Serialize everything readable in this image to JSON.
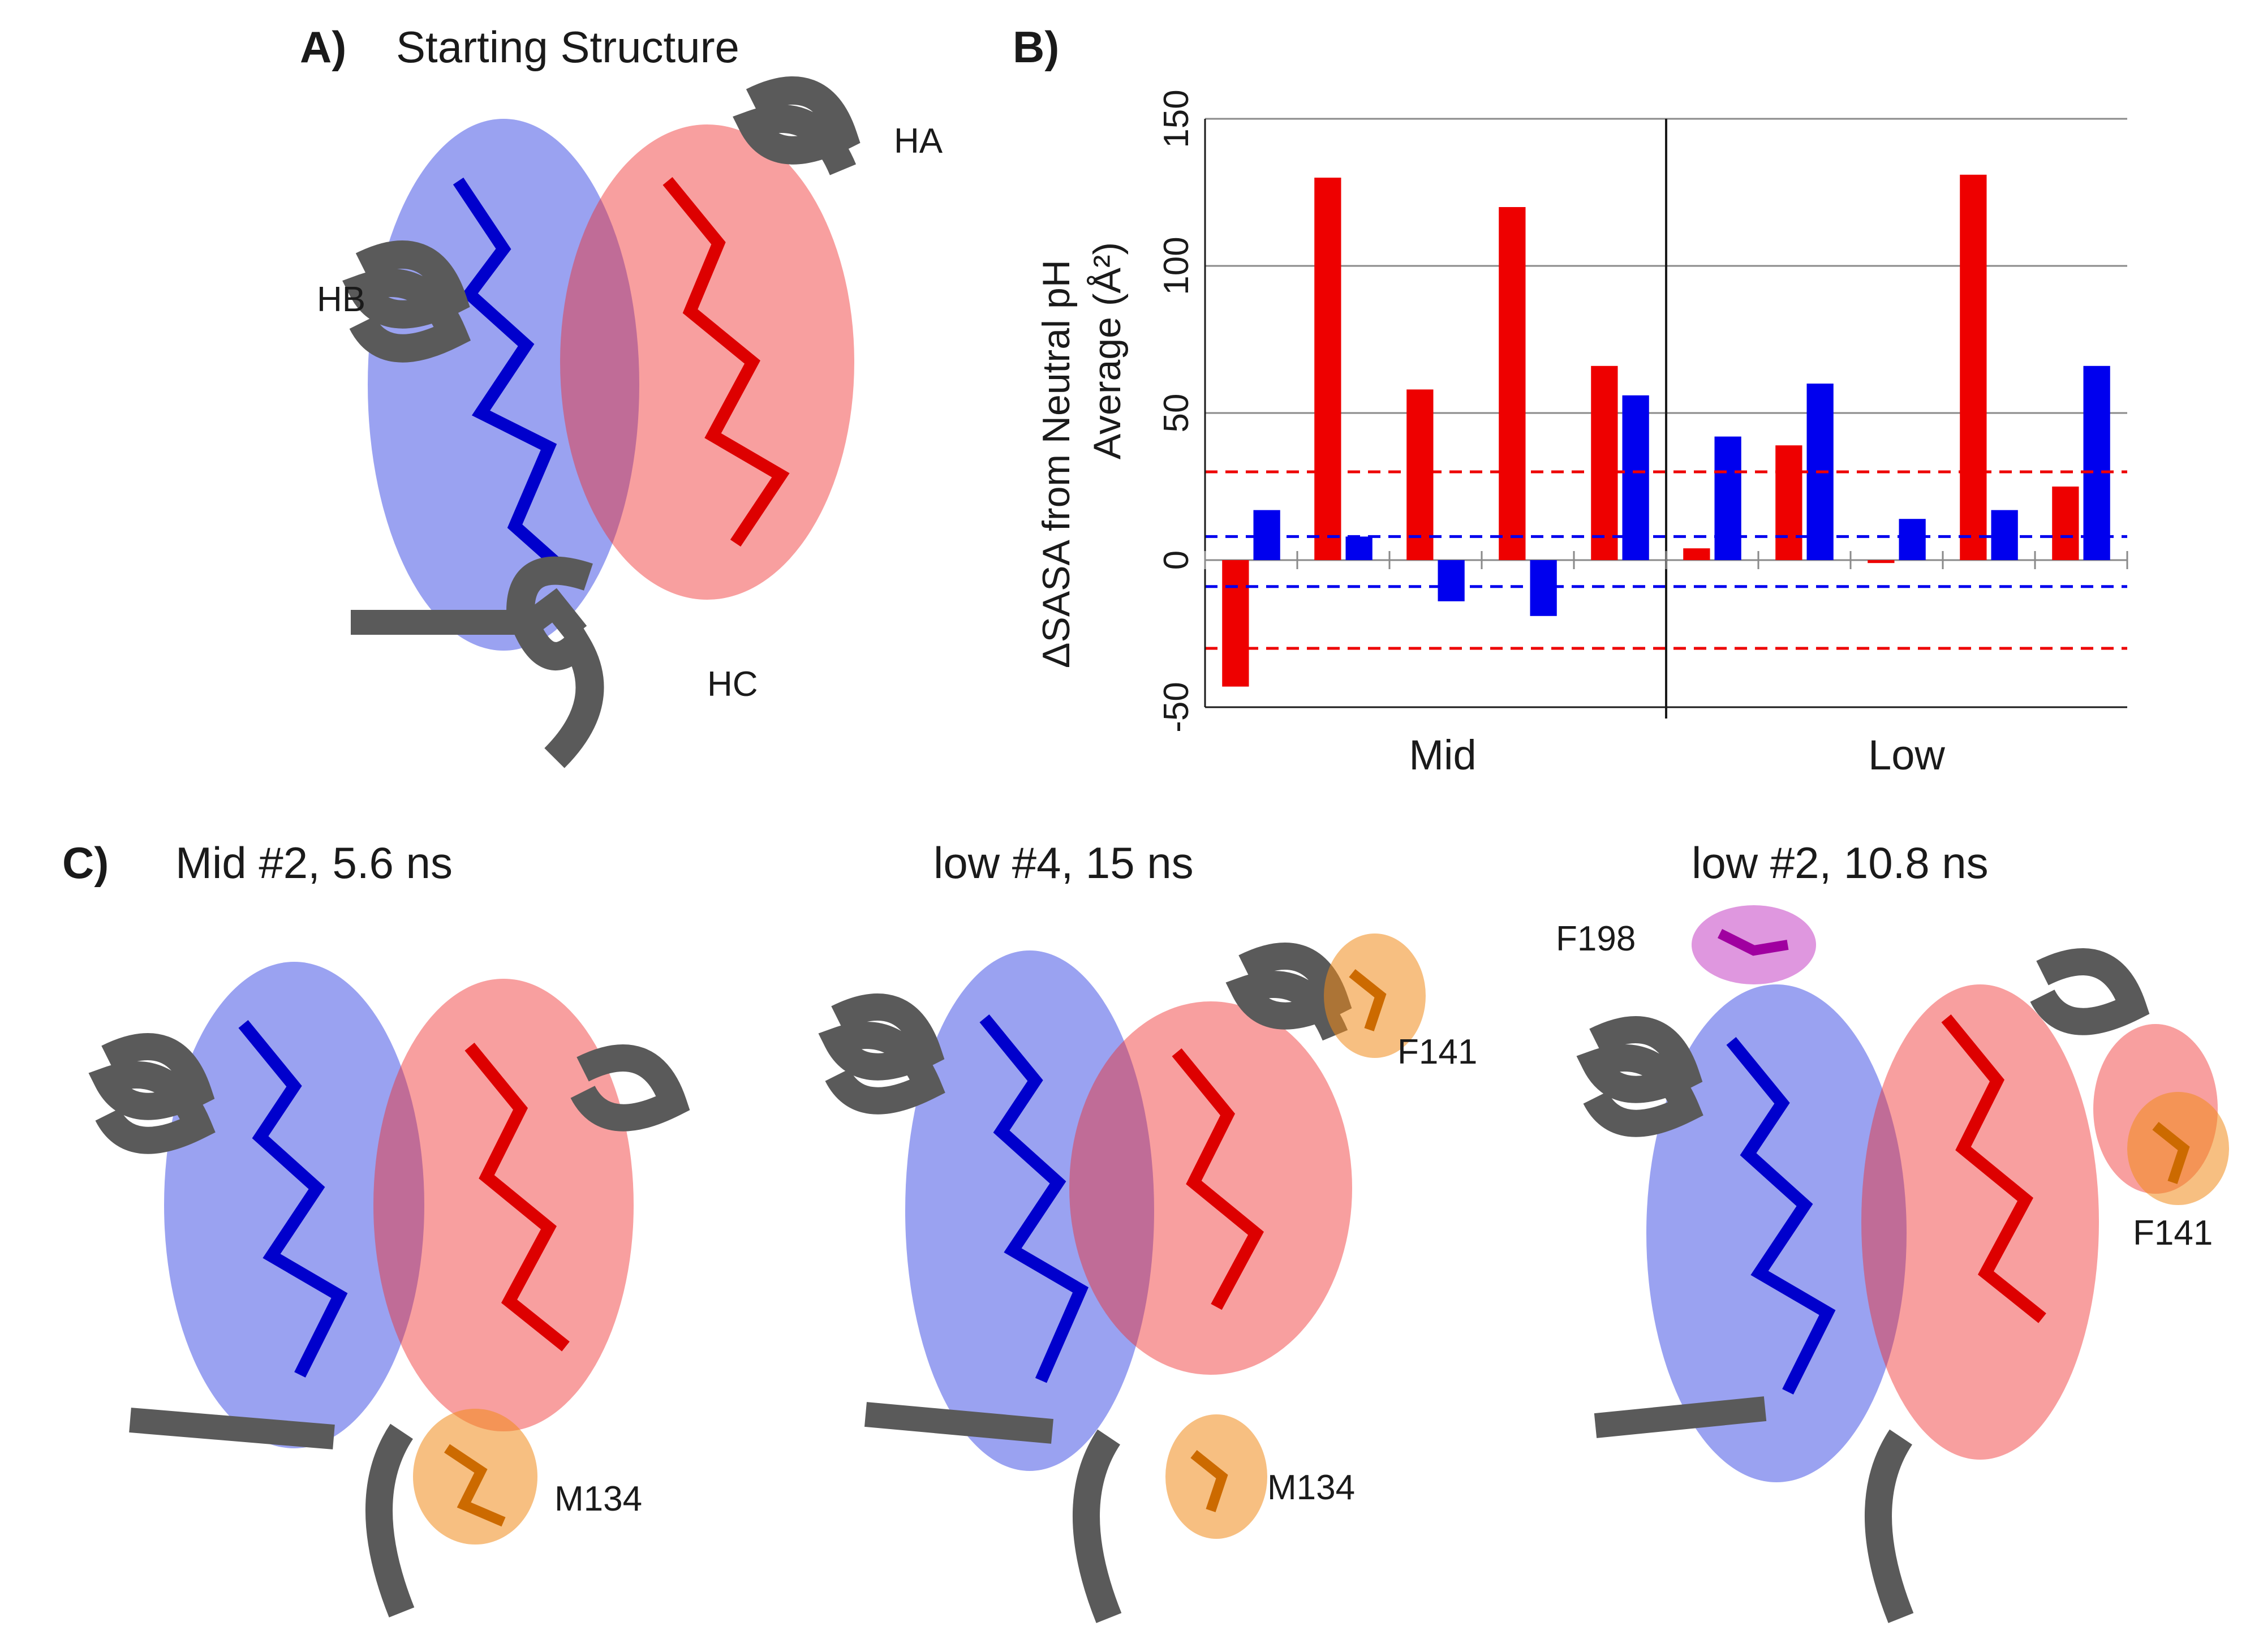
{
  "panel_a": {
    "letter": "A)",
    "title": "Starting Structure",
    "helix_labels": [
      "HA",
      "HB",
      "HC"
    ]
  },
  "panel_b": {
    "letter": "B)"
  },
  "panel_c": {
    "letter": "C)",
    "snapshots": [
      {
        "title": "Mid #2, 5.6 ns",
        "residue_labels": [
          "M134"
        ]
      },
      {
        "title": "low #4, 15 ns",
        "residue_labels": [
          "F141",
          "M134"
        ]
      },
      {
        "title": "low #2, 10.8 ns",
        "residue_labels": [
          "F198",
          "F141"
        ]
      }
    ]
  },
  "colors": {
    "red_series": "#ee0000",
    "blue_series": "#0000ee",
    "helix_gray": "#5a5a5a",
    "blue_surface": "#2030e0",
    "red_surface": "#f02a2a",
    "orange_residue": "#f08a1a",
    "magenta_residue": "#c030c0"
  },
  "chart_data": {
    "type": "bar",
    "ylabel_line1": "ΔSASA from Neutral pH",
    "ylabel_line2": "Average (Å²)",
    "ylim": [
      -50,
      150
    ],
    "yticks": [
      -50,
      0,
      50,
      100,
      150
    ],
    "grid": true,
    "groups": [
      "Mid",
      "Low"
    ],
    "bars_per_group": 5,
    "series": [
      {
        "color": "red",
        "values": [
          -43,
          130,
          58,
          120,
          66,
          4,
          39,
          -1,
          131,
          25
        ]
      },
      {
        "color": "blue",
        "values": [
          17,
          8,
          -14,
          -19,
          56,
          42,
          60,
          14,
          17,
          66
        ]
      }
    ],
    "threshold_lines": [
      {
        "color": "red",
        "value": 30
      },
      {
        "color": "red",
        "value": -30
      },
      {
        "color": "blue",
        "value": 8
      },
      {
        "color": "blue",
        "value": -9
      }
    ]
  }
}
